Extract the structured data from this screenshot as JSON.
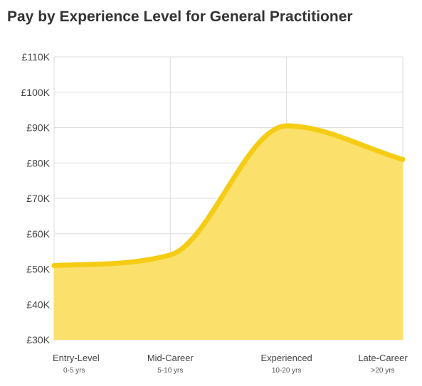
{
  "chart_data": {
    "type": "area",
    "title": "Pay by Experience Level for General Practitioner",
    "categories": [
      "Entry-Level",
      "Mid-Career",
      "Experienced",
      "Late-Career"
    ],
    "category_sublabels": [
      "0-5 yrs",
      "5-10 yrs",
      "10-20 yrs",
      ">20 yrs"
    ],
    "values": [
      51000,
      54000,
      90500,
      81000
    ],
    "ylim": [
      30000,
      110000
    ],
    "y_ticks": [
      30000,
      40000,
      50000,
      60000,
      70000,
      80000,
      90000,
      100000,
      110000
    ],
    "y_tick_labels": [
      "£30K",
      "£40K",
      "£50K",
      "£60K",
      "£70K",
      "£80K",
      "£90K",
      "£100K",
      "£110K"
    ],
    "grid": true,
    "colors": {
      "line": "#f5cc14",
      "fill": "#fbe06b",
      "grid": "#dddddd"
    }
  }
}
